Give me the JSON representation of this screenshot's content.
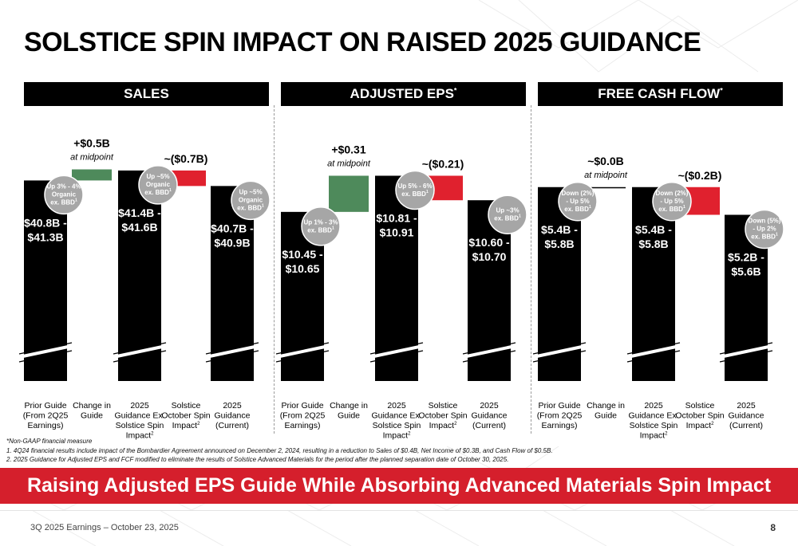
{
  "title": "SOLSTICE SPIN IMPACT ON RAISED 2025 GUIDANCE",
  "colors": {
    "bar": "#000000",
    "increase": "#4e8a5b",
    "decrease": "#e0212e",
    "badge": "#a6a6a6",
    "banner": "#d51f2c"
  },
  "categories": [
    "Prior Guide|(From 2Q25|Earnings)",
    "Change in|Guide",
    "2025|Guidance Ex.|Solstice Spin|Impact^2",
    "Solstice|October Spin|Impact^2",
    "2025|Guidance|(Current)"
  ],
  "chart_data": [
    {
      "type": "bar",
      "title": "SALES",
      "title_sup": "",
      "categories": [
        "Prior Guide (From 2Q25 Earnings)",
        "Change in Guide",
        "2025 Guidance Ex. Solstice Spin Impact",
        "Solstice October Spin Impact",
        "2025 Guidance (Current)"
      ],
      "totals": [
        41.05,
        null,
        41.5,
        null,
        40.8
      ],
      "total_labels": [
        "$40.8B -|$41.3B",
        null,
        "$41.4B -|$41.6B",
        null,
        "$40.7B -|$40.9B"
      ],
      "changes": [
        null,
        0.5,
        null,
        -0.7,
        null
      ],
      "change_labels": [
        null,
        "+$0.5B",
        null,
        "~($0.7B)",
        null
      ],
      "change_sublabels": [
        null,
        "at midpoint",
        null,
        "",
        null
      ],
      "badges": [
        {
          "bar": 0,
          "text": "Up 3% - 4%|Organic|ex. BBD^1"
        },
        {
          "bar": 2,
          "text": "Up ~5%|Organic|ex. BBD^1"
        },
        {
          "bar": 4,
          "text": "Up ~5%|Organic|ex. BBD^1"
        }
      ],
      "axis_break": true,
      "ylim": [
        32,
        42
      ]
    },
    {
      "type": "bar",
      "title": "ADJUSTED EPS",
      "title_sup": "*",
      "categories": [
        "Prior Guide (From 2Q25 Earnings)",
        "Change in Guide",
        "2025 Guidance Ex. Solstice Spin Impact",
        "Solstice October Spin Impact",
        "2025 Guidance (Current)"
      ],
      "totals": [
        10.55,
        null,
        10.86,
        null,
        10.65
      ],
      "total_labels": [
        "$10.45 -|$10.65",
        null,
        "$10.81 -|$10.91",
        null,
        "$10.60 -|$10.70"
      ],
      "changes": [
        null,
        0.31,
        null,
        -0.21,
        null
      ],
      "change_labels": [
        null,
        "+$0.31",
        null,
        "~($0.21)",
        null
      ],
      "change_sublabels": [
        null,
        "at midpoint",
        null,
        "",
        null
      ],
      "badges": [
        {
          "bar": 0,
          "text": "Up 1% - 3%|ex. BBD^1"
        },
        {
          "bar": 2,
          "text": "Up 5% - 6%|ex. BBD^1"
        },
        {
          "bar": 4,
          "text": "Up ~3%|ex. BBD^1"
        }
      ],
      "axis_break": true,
      "ylim": [
        9.1,
        11.0
      ]
    },
    {
      "type": "bar",
      "title": "FREE CASH FLOW",
      "title_sup": "*",
      "categories": [
        "Prior Guide (From 2Q25 Earnings)",
        "Change in Guide",
        "2025 Guidance Ex. Solstice Spin Impact",
        "Solstice October Spin Impact",
        "2025 Guidance (Current)"
      ],
      "totals": [
        5.6,
        null,
        5.6,
        null,
        5.4
      ],
      "total_labels": [
        "$5.4B -|$5.8B",
        null,
        "$5.4B -|$5.8B",
        null,
        "$5.2B -|$5.6B"
      ],
      "changes": [
        null,
        0.0,
        null,
        -0.2,
        null
      ],
      "change_labels": [
        null,
        "~$0.0B",
        null,
        "~($0.2B)",
        null
      ],
      "change_sublabels": [
        null,
        "at midpoint",
        null,
        "",
        null
      ],
      "badges": [
        {
          "bar": 0,
          "text": "Down (2%)|- Up 5%|ex. BBD^1"
        },
        {
          "bar": 2,
          "text": "Down (2%)|- Up 5%|ex. BBD^1"
        },
        {
          "bar": 4,
          "text": "Down (5%)|- Up 2%|ex. BBD^1"
        }
      ],
      "axis_break": true,
      "ylim": [
        4.2,
        5.8
      ]
    }
  ],
  "footnotes": [
    "*Non-GAAP financial measure",
    "1. 4Q24 financial results include impact of the Bombardier Agreement announced on December 2, 2024, resulting in a reduction to Sales of $0.4B, Net Income of $0.3B, and Cash Flow of $0.5B.",
    "2. 2025 Guidance for Adjusted EPS and FCF modified to eliminate the results of Solstice Advanced Materials for the period after the planned separation date of October 30, 2025."
  ],
  "banner": "Raising Adjusted EPS Guide While Absorbing Advanced Materials Spin Impact",
  "footer": {
    "left": "3Q 2025 Earnings – October 23, 2025",
    "page": "8"
  }
}
